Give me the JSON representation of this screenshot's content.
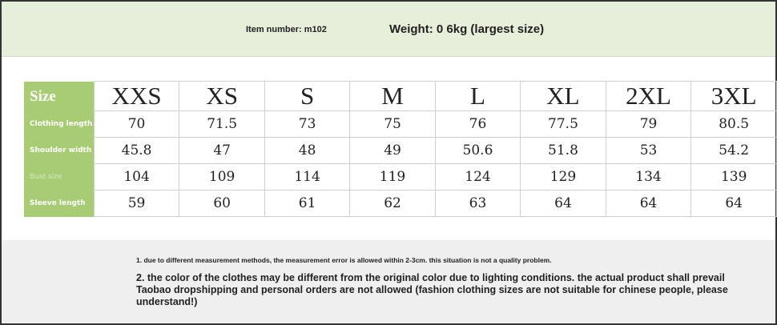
{
  "header": {
    "item_number": "Item number: m102",
    "weight": "Weight: 0 6kg (largest size)"
  },
  "table": {
    "size_label": "Size",
    "sizes": [
      "XXS",
      "XS",
      "S",
      "M",
      "L",
      "XL",
      "2XL",
      "3XL"
    ],
    "rows": [
      {
        "label": "Clothing length",
        "values": [
          "70",
          "71.5",
          "73",
          "75",
          "76",
          "77.5",
          "79",
          "80.5"
        ]
      },
      {
        "label": "Shoulder width",
        "values": [
          "45.8",
          "47",
          "48",
          "49",
          "50.6",
          "51.8",
          "53",
          "54.2"
        ]
      },
      {
        "label": "Bust size",
        "values": [
          "104",
          "109",
          "114",
          "119",
          "124",
          "129",
          "134",
          "139"
        ]
      },
      {
        "label": "Sleeve length",
        "values": [
          "59",
          "60",
          "61",
          "62",
          "63",
          "64",
          "64",
          "64"
        ]
      }
    ]
  },
  "notes": {
    "note1": "1. due to different measurement methods, the measurement error is allowed within 2-3cm. this situation is not a quality problem.",
    "note2": "2. the color of the clothes may be different from the original color due to lighting conditions. the actual product shall prevail Taobao dropshipping and personal orders are not allowed (fashion clothing sizes are not suitable for chinese people, please understand!)"
  },
  "colors": {
    "label_bg": "#a8cc74",
    "top_bg": "#e5efd9",
    "bottom_bg": "#efefef"
  }
}
